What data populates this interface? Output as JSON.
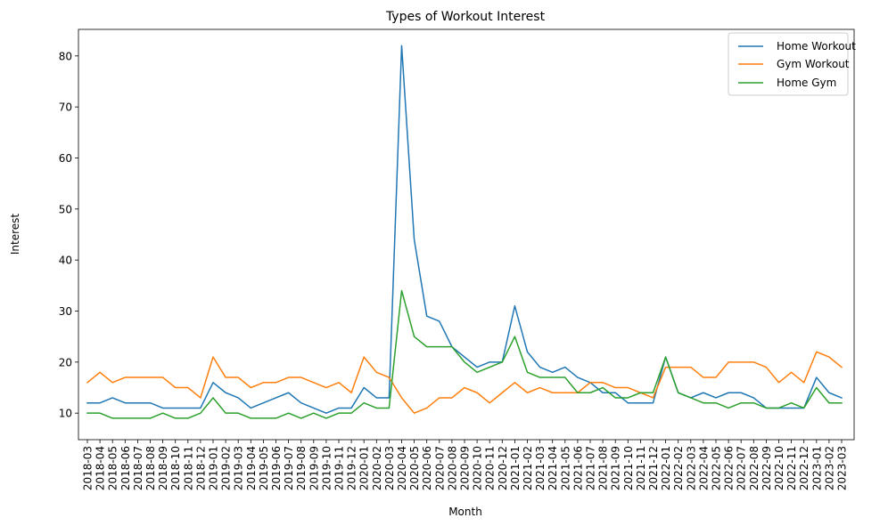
{
  "chart_data": {
    "type": "line",
    "title": "Types of Workout Interest",
    "xlabel": "Month",
    "ylabel": "Interest",
    "ylim": [
      4.8,
      85.2
    ],
    "yticks": [
      10,
      20,
      30,
      40,
      50,
      60,
      70,
      80
    ],
    "grid": false,
    "legend_position": "top-right",
    "categories": [
      "2018-03",
      "2018-04",
      "2018-05",
      "2018-06",
      "2018-07",
      "2018-08",
      "2018-09",
      "2018-10",
      "2018-11",
      "2018-12",
      "2019-01",
      "2019-02",
      "2019-03",
      "2019-04",
      "2019-05",
      "2019-06",
      "2019-07",
      "2019-08",
      "2019-09",
      "2019-10",
      "2019-11",
      "2019-12",
      "2020-01",
      "2020-02",
      "2020-03",
      "2020-04",
      "2020-05",
      "2020-06",
      "2020-07",
      "2020-08",
      "2020-09",
      "2020-10",
      "2020-11",
      "2020-12",
      "2021-01",
      "2021-02",
      "2021-03",
      "2021-04",
      "2021-05",
      "2021-06",
      "2021-07",
      "2021-08",
      "2021-09",
      "2021-10",
      "2021-11",
      "2021-12",
      "2022-01",
      "2022-02",
      "2022-03",
      "2022-04",
      "2022-05",
      "2022-06",
      "2022-07",
      "2022-08",
      "2022-09",
      "2022-10",
      "2022-11",
      "2022-12",
      "2023-01",
      "2023-02",
      "2023-03"
    ],
    "series": [
      {
        "name": "Home Workout",
        "color": "#1f77b4",
        "values": [
          12,
          12,
          13,
          12,
          12,
          12,
          11,
          11,
          11,
          11,
          16,
          14,
          13,
          11,
          12,
          13,
          14,
          12,
          11,
          10,
          11,
          11,
          15,
          13,
          13,
          82,
          44,
          29,
          28,
          23,
          21,
          19,
          20,
          20,
          31,
          22,
          19,
          18,
          19,
          17,
          16,
          14,
          14,
          12,
          12,
          12,
          21,
          14,
          13,
          14,
          13,
          14,
          14,
          13,
          11,
          11,
          11,
          11,
          17,
          14,
          13
        ]
      },
      {
        "name": "Gym Workout",
        "color": "#ff7f0e",
        "values": [
          16,
          18,
          16,
          17,
          17,
          17,
          17,
          15,
          15,
          13,
          21,
          17,
          17,
          15,
          16,
          16,
          17,
          17,
          16,
          15,
          16,
          14,
          21,
          18,
          17,
          13,
          10,
          11,
          13,
          13,
          15,
          14,
          12,
          14,
          16,
          14,
          15,
          14,
          14,
          14,
          16,
          16,
          15,
          15,
          14,
          13,
          19,
          19,
          19,
          17,
          17,
          20,
          20,
          20,
          19,
          16,
          18,
          16,
          22,
          21,
          19
        ]
      },
      {
        "name": "Home Gym",
        "color": "#2ca02c",
        "values": [
          10,
          10,
          9,
          9,
          9,
          9,
          10,
          9,
          9,
          10,
          13,
          10,
          10,
          9,
          9,
          9,
          10,
          9,
          10,
          9,
          10,
          10,
          12,
          11,
          11,
          34,
          25,
          23,
          23,
          23,
          20,
          18,
          19,
          20,
          25,
          18,
          17,
          17,
          17,
          14,
          14,
          15,
          13,
          13,
          14,
          14,
          21,
          14,
          13,
          12,
          12,
          11,
          12,
          12,
          11,
          11,
          12,
          11,
          15,
          12,
          12
        ]
      }
    ]
  }
}
